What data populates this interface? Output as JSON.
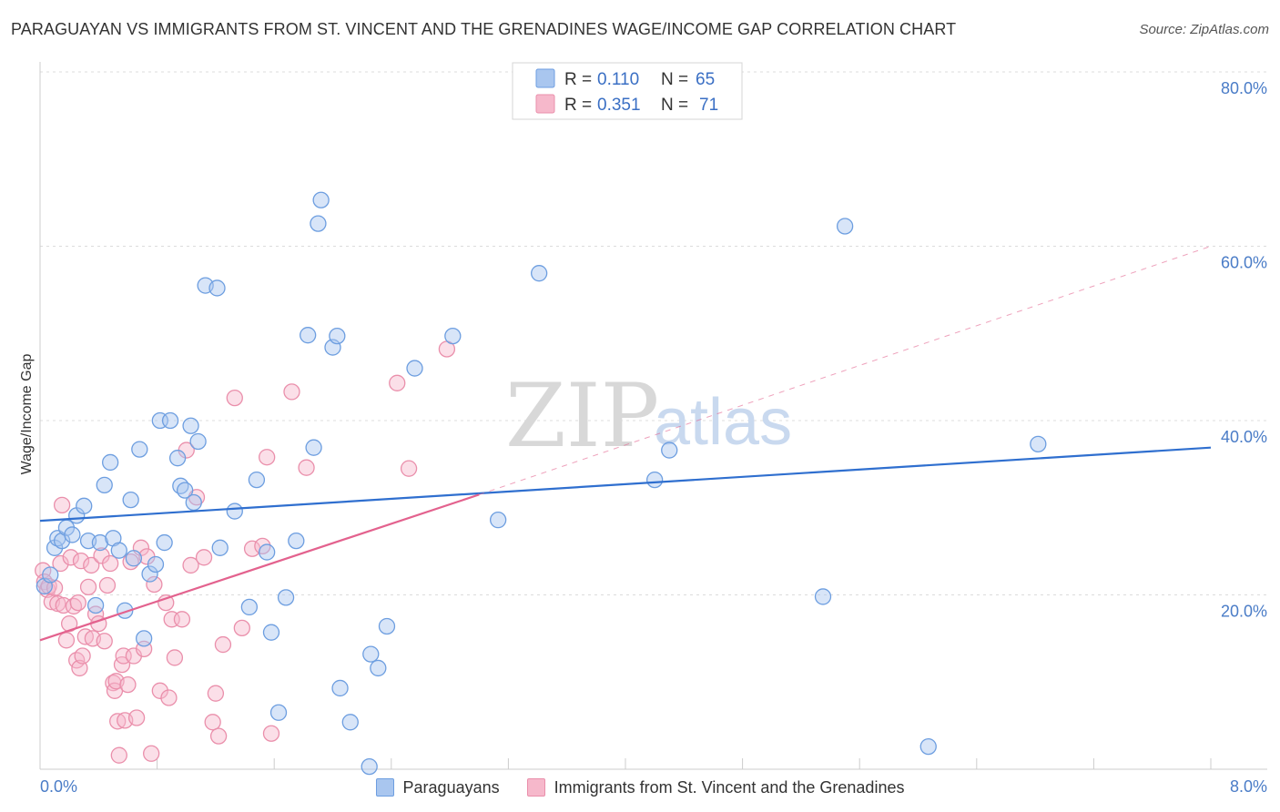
{
  "header": {
    "title": "PARAGUAYAN VS IMMIGRANTS FROM ST. VINCENT AND THE GRENADINES WAGE/INCOME GAP CORRELATION CHART",
    "source": "Source: ZipAtlas.com"
  },
  "watermark": {
    "zip": "ZIP",
    "atlas": "atlas"
  },
  "legend_top": {
    "rows": [
      {
        "r_label": "R = ",
        "r_value": "0.110",
        "n_label": "N = ",
        "n_value": "65"
      },
      {
        "r_label": "R = ",
        "r_value": "0.351",
        "n_label": "N = ",
        "n_value": "71"
      }
    ]
  },
  "legend_bottom": {
    "items": [
      {
        "label": "Paraguayans"
      },
      {
        "label": "Immigrants from St. Vincent and the Grenadines"
      }
    ]
  },
  "colors": {
    "blue_fill": "#a9c6ef",
    "blue_stroke": "#6d9ee0",
    "blue_line": "#2f6fcf",
    "pink_fill": "#f6b8cb",
    "pink_stroke": "#ea8fab",
    "pink_line": "#e3628e",
    "grid": "#dcdcdc",
    "tick_text": "#4a7cc7"
  },
  "chart_data": {
    "type": "scatter",
    "title": "PARAGUAYAN VS IMMIGRANTS FROM ST. VINCENT AND THE GRENADINES WAGE/INCOME GAP CORRELATION CHART",
    "xlabel": "",
    "ylabel": "Wage/Income Gap",
    "xlim": [
      0,
      8
    ],
    "ylim": [
      0,
      80
    ],
    "x_tick_labels": [
      "0.0%",
      "8.0%"
    ],
    "y_tick_values": [
      20,
      40,
      60,
      80
    ],
    "y_tick_labels": [
      "20.0%",
      "40.0%",
      "60.0%",
      "80.0%"
    ],
    "grid": true,
    "legend_position": "top-center",
    "series": [
      {
        "name": "Paraguayans",
        "color": "#a9c6ef",
        "points": [
          [
            0.03,
            21.0
          ],
          [
            0.07,
            22.3
          ],
          [
            0.1,
            25.4
          ],
          [
            0.12,
            26.5
          ],
          [
            0.15,
            26.2
          ],
          [
            0.18,
            27.7
          ],
          [
            0.22,
            26.9
          ],
          [
            0.25,
            29.1
          ],
          [
            0.3,
            30.2
          ],
          [
            0.33,
            26.2
          ],
          [
            0.38,
            18.8
          ],
          [
            0.41,
            26.0
          ],
          [
            0.44,
            32.6
          ],
          [
            0.48,
            35.2
          ],
          [
            0.5,
            26.5
          ],
          [
            0.54,
            25.1
          ],
          [
            0.58,
            18.2
          ],
          [
            0.62,
            30.9
          ],
          [
            0.64,
            24.2
          ],
          [
            0.68,
            36.7
          ],
          [
            0.71,
            15.0
          ],
          [
            0.75,
            22.4
          ],
          [
            0.79,
            23.5
          ],
          [
            0.82,
            40.0
          ],
          [
            0.85,
            26.0
          ],
          [
            0.89,
            40.0
          ],
          [
            0.94,
            35.7
          ],
          [
            0.96,
            32.5
          ],
          [
            0.99,
            32.0
          ],
          [
            1.03,
            39.4
          ],
          [
            1.05,
            30.6
          ],
          [
            1.08,
            37.6
          ],
          [
            1.13,
            55.5
          ],
          [
            1.21,
            55.2
          ],
          [
            1.23,
            25.4
          ],
          [
            1.33,
            29.6
          ],
          [
            1.43,
            18.6
          ],
          [
            1.48,
            33.2
          ],
          [
            1.55,
            24.9
          ],
          [
            1.58,
            15.7
          ],
          [
            1.63,
            6.5
          ],
          [
            1.68,
            19.7
          ],
          [
            1.75,
            26.2
          ],
          [
            1.83,
            49.8
          ],
          [
            1.87,
            36.9
          ],
          [
            1.9,
            62.6
          ],
          [
            1.92,
            65.3
          ],
          [
            2.0,
            48.4
          ],
          [
            2.03,
            49.7
          ],
          [
            2.05,
            9.3
          ],
          [
            2.12,
            5.4
          ],
          [
            2.25,
            0.3
          ],
          [
            2.26,
            13.2
          ],
          [
            2.31,
            11.6
          ],
          [
            2.37,
            16.4
          ],
          [
            2.56,
            46.0
          ],
          [
            2.82,
            49.7
          ],
          [
            3.13,
            28.6
          ],
          [
            3.41,
            56.9
          ],
          [
            4.2,
            33.2
          ],
          [
            4.3,
            36.6
          ],
          [
            5.35,
            19.8
          ],
          [
            5.5,
            62.3
          ],
          [
            6.07,
            2.6
          ],
          [
            6.82,
            37.3
          ]
        ]
      },
      {
        "name": "Immigrants from St. Vincent and the Grenadines",
        "color": "#f6b8cb",
        "points": [
          [
            0.02,
            22.8
          ],
          [
            0.03,
            21.5
          ],
          [
            0.05,
            20.6
          ],
          [
            0.06,
            21.0
          ],
          [
            0.08,
            19.2
          ],
          [
            0.1,
            20.8
          ],
          [
            0.12,
            19.0
          ],
          [
            0.14,
            23.6
          ],
          [
            0.16,
            18.8
          ],
          [
            0.18,
            14.8
          ],
          [
            0.2,
            16.7
          ],
          [
            0.21,
            24.3
          ],
          [
            0.23,
            18.7
          ],
          [
            0.25,
            12.5
          ],
          [
            0.26,
            19.1
          ],
          [
            0.27,
            11.6
          ],
          [
            0.28,
            23.9
          ],
          [
            0.29,
            13.0
          ],
          [
            0.31,
            15.2
          ],
          [
            0.33,
            20.9
          ],
          [
            0.35,
            23.4
          ],
          [
            0.36,
            15.0
          ],
          [
            0.38,
            17.8
          ],
          [
            0.4,
            16.7
          ],
          [
            0.42,
            24.5
          ],
          [
            0.44,
            14.7
          ],
          [
            0.46,
            21.1
          ],
          [
            0.48,
            23.6
          ],
          [
            0.5,
            9.9
          ],
          [
            0.51,
            9.0
          ],
          [
            0.52,
            10.1
          ],
          [
            0.53,
            5.5
          ],
          [
            0.54,
            1.6
          ],
          [
            0.56,
            12.0
          ],
          [
            0.57,
            13.0
          ],
          [
            0.58,
            5.6
          ],
          [
            0.6,
            9.7
          ],
          [
            0.62,
            23.8
          ],
          [
            0.64,
            13.0
          ],
          [
            0.66,
            5.9
          ],
          [
            0.69,
            25.4
          ],
          [
            0.71,
            13.8
          ],
          [
            0.73,
            24.4
          ],
          [
            0.76,
            1.8
          ],
          [
            0.78,
            21.2
          ],
          [
            0.82,
            9.0
          ],
          [
            0.86,
            19.1
          ],
          [
            0.88,
            8.2
          ],
          [
            0.9,
            17.2
          ],
          [
            0.92,
            12.8
          ],
          [
            0.97,
            17.2
          ],
          [
            1.0,
            36.6
          ],
          [
            1.03,
            23.4
          ],
          [
            1.07,
            31.2
          ],
          [
            1.12,
            24.3
          ],
          [
            1.18,
            5.4
          ],
          [
            1.2,
            8.7
          ],
          [
            1.22,
            3.8
          ],
          [
            1.25,
            14.3
          ],
          [
            1.33,
            42.6
          ],
          [
            1.38,
            16.2
          ],
          [
            1.45,
            25.3
          ],
          [
            1.52,
            25.6
          ],
          [
            1.55,
            35.8
          ],
          [
            1.58,
            4.1
          ],
          [
            1.72,
            43.3
          ],
          [
            1.82,
            34.6
          ],
          [
            2.44,
            44.3
          ],
          [
            2.52,
            34.5
          ],
          [
            2.78,
            48.2
          ],
          [
            0.15,
            30.3
          ]
        ]
      }
    ],
    "trendlines": [
      {
        "series": "Paraguayans",
        "x": [
          0.0,
          8.0
        ],
        "y": [
          28.5,
          36.9
        ],
        "style": "solid"
      },
      {
        "series": "Immigrants from St. Vincent and the Grenadines",
        "x": [
          0.0,
          3.0
        ],
        "y": [
          14.8,
          31.5
        ],
        "style": "solid"
      },
      {
        "series": "Immigrants from St. Vincent and the Grenadines",
        "x": [
          3.0,
          8.0
        ],
        "y": [
          31.5,
          60.0
        ],
        "style": "dashed"
      }
    ]
  }
}
